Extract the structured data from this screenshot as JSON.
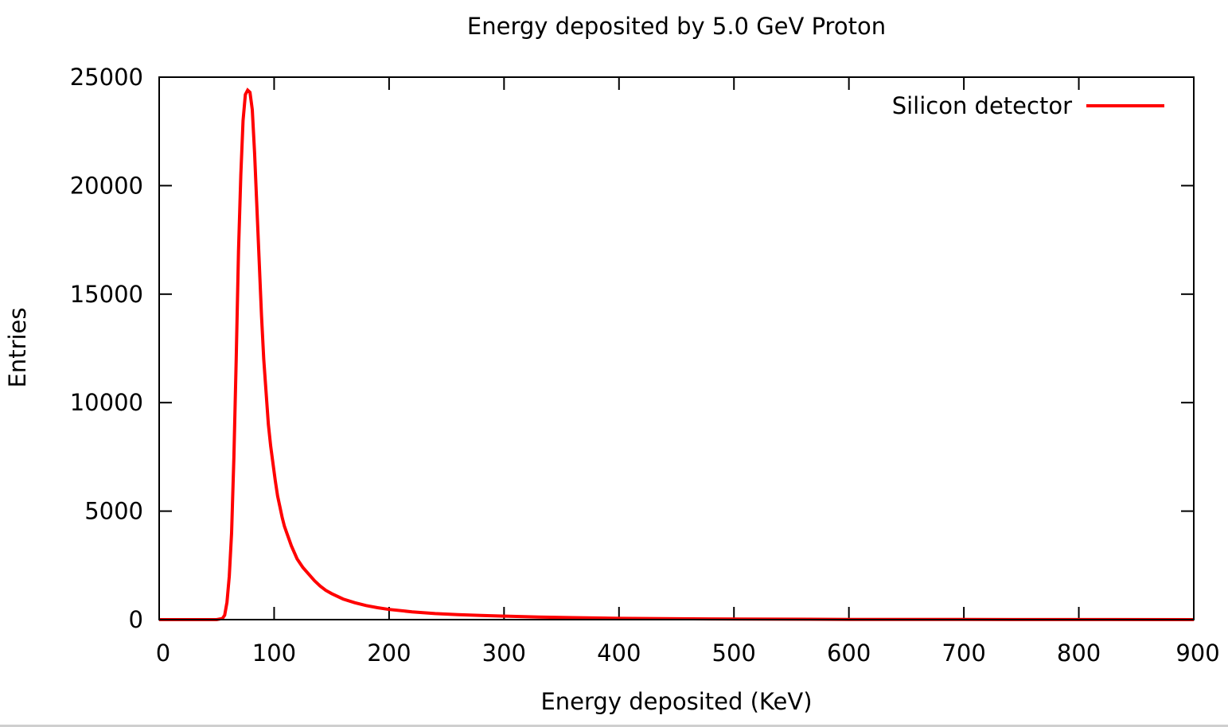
{
  "chart_data": {
    "type": "line",
    "title": "Energy deposited by 5.0 GeV Proton",
    "xlabel": "Energy deposited (KeV)",
    "ylabel": "Entries",
    "xlim": [
      0,
      900
    ],
    "ylim": [
      0,
      25000
    ],
    "x_ticks": [
      0,
      100,
      200,
      300,
      400,
      500,
      600,
      700,
      800,
      900
    ],
    "y_ticks": [
      0,
      5000,
      10000,
      15000,
      20000,
      25000
    ],
    "grid": false,
    "legend": "top-right",
    "series": [
      {
        "name": "Silicon detector",
        "color": "#ff0000",
        "style": "steps",
        "x": [
          0,
          50,
          55,
          57,
          59,
          61,
          63,
          65,
          67,
          69,
          71,
          73,
          75,
          77,
          79,
          81,
          83,
          85,
          87,
          89,
          91,
          93,
          95,
          97,
          99,
          101,
          103,
          105,
          107,
          109,
          111,
          113,
          115,
          120,
          125,
          130,
          135,
          140,
          145,
          150,
          160,
          170,
          180,
          190,
          200,
          220,
          240,
          260,
          280,
          300,
          330,
          360,
          400,
          450,
          500,
          600,
          700,
          800,
          900
        ],
        "y": [
          0,
          0,
          50,
          200,
          800,
          2000,
          4000,
          7500,
          12000,
          17000,
          20500,
          23000,
          24200,
          24400,
          24300,
          23500,
          21500,
          19000,
          16500,
          14000,
          12000,
          10500,
          9000,
          8000,
          7200,
          6400,
          5700,
          5200,
          4700,
          4300,
          4000,
          3700,
          3400,
          2800,
          2400,
          2100,
          1800,
          1550,
          1350,
          1200,
          950,
          780,
          650,
          550,
          470,
          360,
          280,
          230,
          190,
          160,
          120,
          90,
          60,
          40,
          25,
          12,
          6,
          3,
          0
        ]
      }
    ]
  }
}
